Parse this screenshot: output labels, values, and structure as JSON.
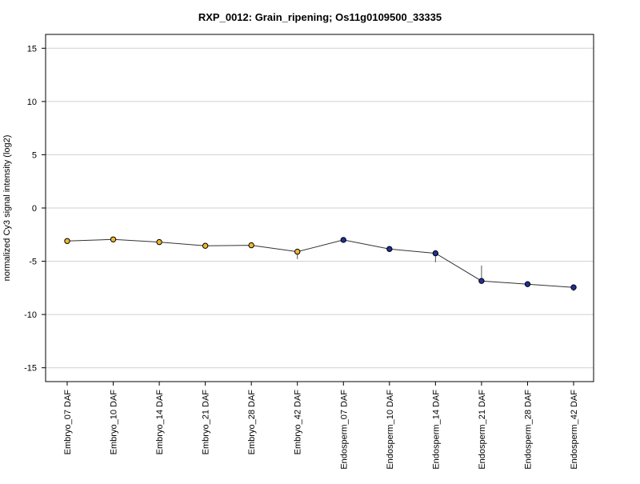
{
  "chart_data": {
    "type": "line",
    "title": "RXP_0012: Grain_ripening; Os11g0109500_33335",
    "xlabel": "",
    "ylabel": "normalized Cy3 signal intensity (log2)",
    "ylim": [
      -16.3,
      16.3
    ],
    "yticks": [
      -15,
      -10,
      -5,
      0,
      5,
      10,
      15
    ],
    "grid": true,
    "categories": [
      "Embryo_07 DAF",
      "Embryo_10 DAF",
      "Embryo_14 DAF",
      "Embryo_21 DAF",
      "Embryo_28 DAF",
      "Embryo_42 DAF",
      "Endosperm_07 DAF",
      "Endosperm_10 DAF",
      "Endosperm_14 DAF",
      "Endosperm_21 DAF",
      "Endosperm_28 DAF",
      "Endosperm_42 DAF"
    ],
    "series": [
      {
        "values": [
          -3.1,
          -2.95,
          -3.2,
          -3.55,
          -3.5,
          -4.1,
          -3.0,
          -3.85,
          -4.25,
          -6.85,
          -7.15,
          -7.45
        ],
        "err_low": [
          -3.1,
          -2.95,
          -3.2,
          -3.55,
          -3.5,
          -4.8,
          -3.0,
          -3.85,
          -5.1,
          -6.85,
          -7.15,
          -7.8
        ],
        "err_high": [
          -3.1,
          -2.95,
          -3.2,
          -3.55,
          -3.5,
          -3.9,
          -3.0,
          -3.85,
          -4.1,
          -5.4,
          -7.15,
          -7.3
        ],
        "colors": [
          "#f0b82a",
          "#f0b82a",
          "#f0b82a",
          "#f0b82a",
          "#f0b82a",
          "#f0b82a",
          "#1f2f9e",
          "#1f2f9e",
          "#1f2f9e",
          "#1f2f9e",
          "#1f2f9e",
          "#1f2f9e"
        ]
      }
    ]
  }
}
